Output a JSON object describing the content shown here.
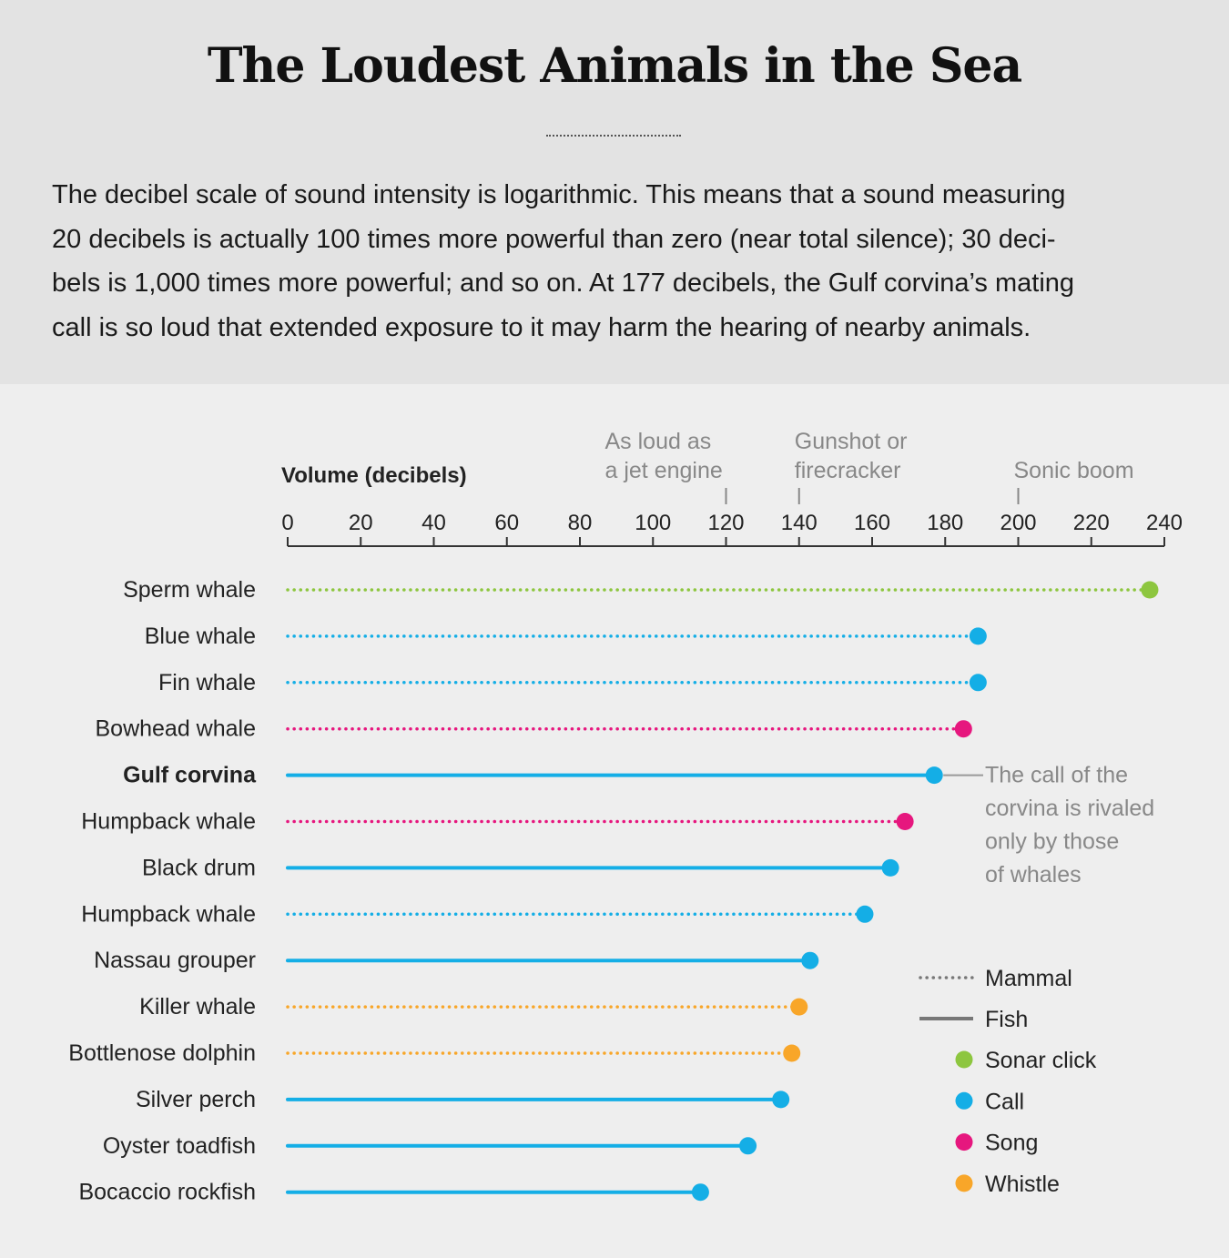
{
  "header": {
    "title": "The Loudest Animals in the Sea",
    "intro_lines": [
      "The decibel scale of sound intensity is logarithmic. This means that a sound measuring",
      "20 decibels is actually 100 times more powerful than zero (near total silence); 30 deci-",
      "bels is 1,000 times more powerful; and so on. At 177 decibels, the Gulf corvina’s mating",
      "call is so loud that extended exposure to it may harm the hearing of nearby animals."
    ]
  },
  "colors": {
    "sonar_click": "#8dc63f",
    "call": "#14aee6",
    "song": "#e6177e",
    "whistle": "#f8a629",
    "axis": "#333333",
    "muted": "#888888"
  },
  "chart_data": {
    "type": "lollipop",
    "xlabel": "Volume (decibels)",
    "xlim": [
      0,
      240
    ],
    "ticks": [
      0,
      20,
      40,
      60,
      80,
      100,
      120,
      140,
      160,
      180,
      200,
      220,
      240
    ],
    "reference_markers": [
      {
        "value": 120,
        "lines": [
          "As loud as",
          "a jet engine"
        ]
      },
      {
        "value": 140,
        "lines": [
          "Gunshot or",
          "firecracker"
        ]
      },
      {
        "value": 200,
        "lines": [
          "Sonic boom"
        ]
      }
    ],
    "series": [
      {
        "name": "Sperm whale",
        "value": 236,
        "group": "Mammal",
        "sound": "Sonar click",
        "highlight": false
      },
      {
        "name": "Blue whale",
        "value": 189,
        "group": "Mammal",
        "sound": "Call",
        "highlight": false
      },
      {
        "name": "Fin whale",
        "value": 189,
        "group": "Mammal",
        "sound": "Call",
        "highlight": false
      },
      {
        "name": "Bowhead whale",
        "value": 185,
        "group": "Mammal",
        "sound": "Song",
        "highlight": false
      },
      {
        "name": "Gulf corvina",
        "value": 177,
        "group": "Fish",
        "sound": "Call",
        "highlight": true
      },
      {
        "name": "Humpback whale",
        "value": 169,
        "group": "Mammal",
        "sound": "Song",
        "highlight": false
      },
      {
        "name": "Black drum",
        "value": 165,
        "group": "Fish",
        "sound": "Call",
        "highlight": false
      },
      {
        "name": "Humpback whale",
        "value": 158,
        "group": "Mammal",
        "sound": "Call",
        "highlight": false
      },
      {
        "name": "Nassau grouper",
        "value": 143,
        "group": "Fish",
        "sound": "Call",
        "highlight": false
      },
      {
        "name": "Killer whale",
        "value": 140,
        "group": "Mammal",
        "sound": "Whistle",
        "highlight": false
      },
      {
        "name": "Bottlenose dolphin",
        "value": 138,
        "group": "Mammal",
        "sound": "Whistle",
        "highlight": false
      },
      {
        "name": "Silver perch",
        "value": 135,
        "group": "Fish",
        "sound": "Call",
        "highlight": false
      },
      {
        "name": "Oyster toadfish",
        "value": 126,
        "group": "Fish",
        "sound": "Call",
        "highlight": false
      },
      {
        "name": "Bocaccio rockfish",
        "value": 113,
        "group": "Fish",
        "sound": "Call",
        "highlight": false
      }
    ],
    "annotation": {
      "target": "Gulf corvina",
      "lines": [
        "The call of the",
        "corvina is rivaled",
        "only by those",
        "of whales"
      ]
    },
    "legend": {
      "line_types": [
        {
          "label": "Mammal",
          "style": "dotted"
        },
        {
          "label": "Fish",
          "style": "solid"
        }
      ],
      "sound_types": [
        {
          "label": "Sonar click",
          "key": "sonar_click"
        },
        {
          "label": "Call",
          "key": "call"
        },
        {
          "label": "Song",
          "key": "song"
        },
        {
          "label": "Whistle",
          "key": "whistle"
        }
      ]
    }
  }
}
